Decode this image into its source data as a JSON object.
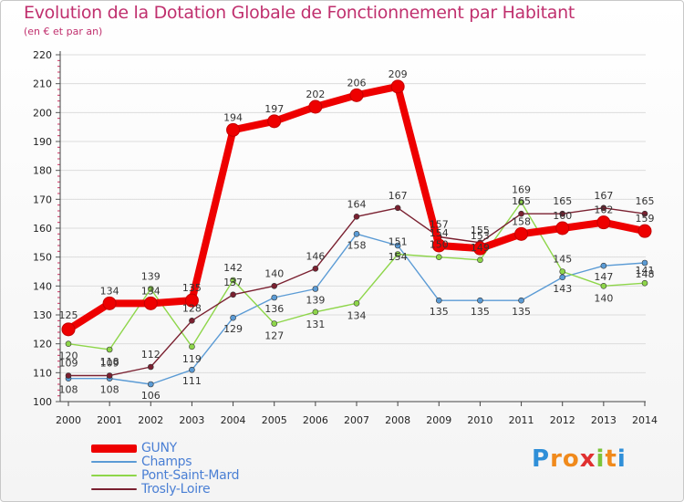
{
  "header": {
    "title": "Evolution de la Dotation Globale de Fonctionnement par Habitant",
    "subtitle": "(en € et par an)"
  },
  "chart_data": {
    "type": "line",
    "title": "Evolution de la Dotation Globale de Fonctionnement par Habitant",
    "subtitle": "(en € et par an)",
    "xlabel": "",
    "ylabel": "",
    "ylim": [
      100,
      220
    ],
    "y_ticks": [
      100,
      110,
      120,
      130,
      140,
      150,
      160,
      170,
      180,
      190,
      200,
      210,
      220
    ],
    "x": [
      "2000",
      "2001",
      "2002",
      "2003",
      "2004",
      "2005",
      "2006",
      "2007",
      "2008",
      "2009",
      "2010",
      "2011",
      "2012",
      "2013",
      "2014"
    ],
    "grid": "horizontal",
    "legend_position": "bottom-left",
    "series": [
      {
        "name": "GUNY",
        "color": "#ee0000",
        "values": [
          125,
          134,
          134,
          135,
          194,
          197,
          202,
          206,
          209,
          154,
          153,
          158,
          160,
          162,
          159
        ]
      },
      {
        "name": "Champs",
        "color": "#5b9bd5",
        "values": [
          108,
          108,
          106,
          111,
          129,
          136,
          139,
          158,
          154,
          135,
          135,
          135,
          143,
          147,
          148
        ]
      },
      {
        "name": "Pont-Saint-Mard",
        "color": "#8ed64a",
        "values": [
          120,
          118,
          139,
          119,
          142,
          127,
          131,
          134,
          151,
          150,
          149,
          169,
          145,
          140,
          141
        ]
      },
      {
        "name": "Trosly-Loire",
        "color": "#7a2030",
        "values": [
          109,
          109,
          112,
          128,
          137,
          140,
          146,
          164,
          167,
          157,
          155,
          165,
          165,
          167,
          165
        ]
      }
    ]
  },
  "branding": {
    "name": "Proxiti",
    "letters": [
      "P",
      "r",
      "o",
      "x",
      "i",
      "t",
      "i"
    ],
    "colors": [
      "#2f8fd8",
      "#f08a1c",
      "#f08a1c",
      "#e03030",
      "#7cc43a",
      "#f08a1c",
      "#2f8fd8"
    ]
  }
}
